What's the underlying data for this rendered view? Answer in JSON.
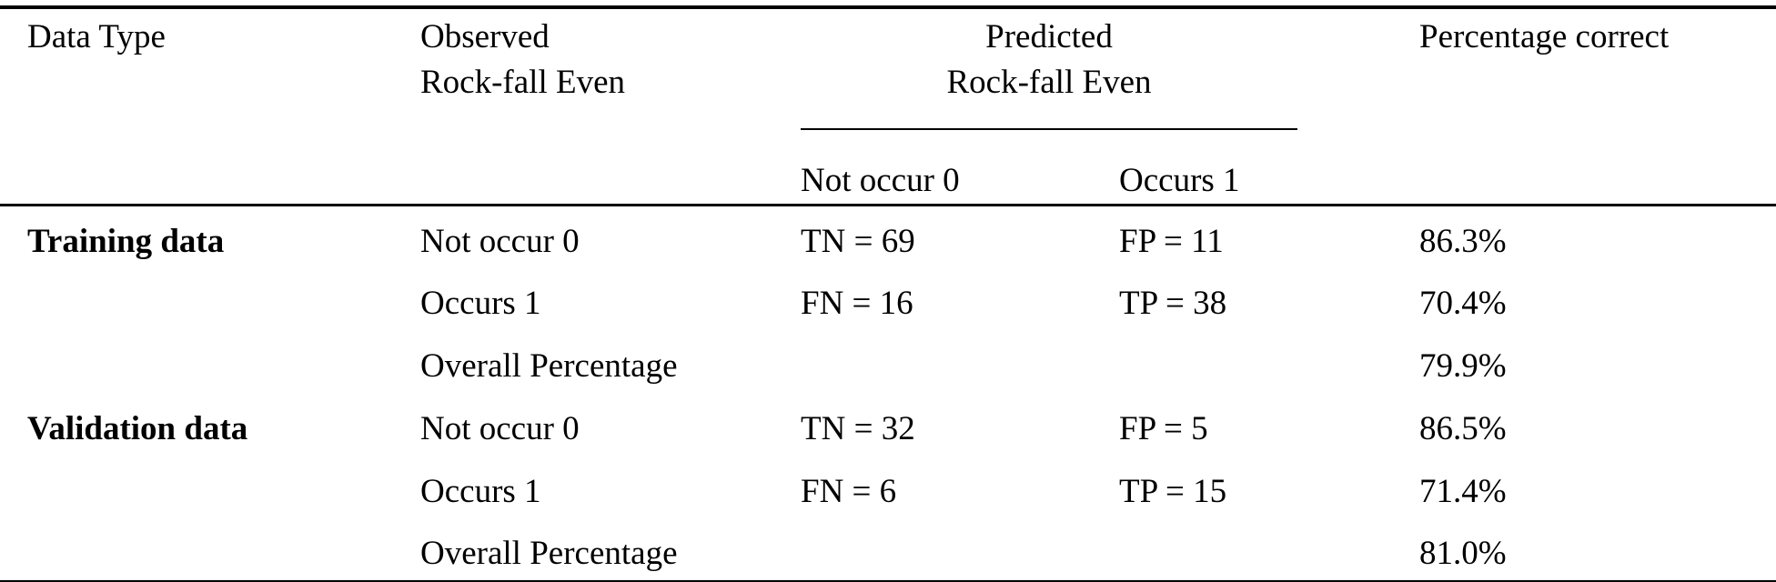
{
  "document": {
    "background": "#ffffff",
    "text_color": "#000000",
    "rule_color": "#000000"
  },
  "table": {
    "header": {
      "data_type": "Data Type",
      "observed_line1": "Observed",
      "observed_line2": "Rock-fall Even",
      "predicted_line1": "Predicted",
      "predicted_line2": "Rock-fall Even",
      "predicted_sub_not_occur": "Not occur 0",
      "predicted_sub_occurs": "Occurs 1",
      "percentage_correct": "Percentage correct"
    },
    "rows": [
      {
        "data_type": "Training data",
        "observed": "Not occur 0",
        "predicted_not_occur": "TN = 69",
        "predicted_occurs": "FP = 11",
        "percentage": "86.3%"
      },
      {
        "data_type": "",
        "observed": "Occurs 1",
        "predicted_not_occur": "FN = 16",
        "predicted_occurs": "TP = 38",
        "percentage": "70.4%"
      },
      {
        "data_type": "",
        "observed": "Overall Percentage",
        "predicted_not_occur": "",
        "predicted_occurs": "",
        "percentage": "79.9%"
      },
      {
        "data_type": "Validation data",
        "observed": "Not occur 0",
        "predicted_not_occur": "TN = 32",
        "predicted_occurs": "FP = 5",
        "percentage": "86.5%"
      },
      {
        "data_type": "",
        "observed": "Occurs 1",
        "predicted_not_occur": "FN = 6",
        "predicted_occurs": "TP = 15",
        "percentage": "71.4%"
      },
      {
        "data_type": "",
        "observed": "Overall Percentage",
        "predicted_not_occur": "",
        "predicted_occurs": "",
        "percentage": "81.0%"
      }
    ]
  }
}
